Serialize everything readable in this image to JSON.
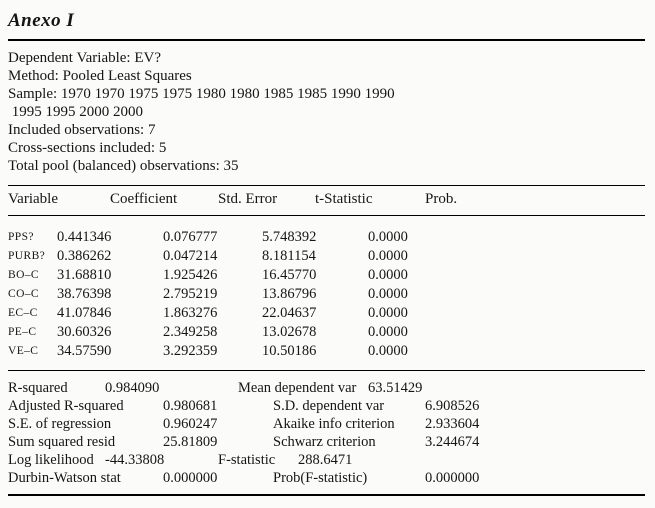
{
  "title": "Anexo I",
  "info": {
    "lines": [
      "Dependent Variable: EV?",
      "Method: Pooled Least Squares",
      "Sample: 1970 1970 1975 1975 1980 1980 1985 1985 1990 1990",
      " 1995 1995 2000 2000",
      "Included observations: 7",
      "Cross-sections included: 5",
      "Total pool (balanced) observations: 35"
    ]
  },
  "table": {
    "columns": [
      "Variable",
      "Coefficient",
      "Std. Error",
      "t-Statistic",
      "Prob."
    ],
    "rows": [
      {
        "variable": "PPS?",
        "coefficient": "0.441346",
        "std_error": "0.076777",
        "t_statistic": "5.748392",
        "prob": "0.0000"
      },
      {
        "variable": "PURB?",
        "coefficient": "0.386262",
        "std_error": "0.047214",
        "t_statistic": "8.181154",
        "prob": "0.0000"
      },
      {
        "variable": "BO–C",
        "coefficient": "31.68810",
        "std_error": "1.925426",
        "t_statistic": "16.45770",
        "prob": "0.0000"
      },
      {
        "variable": "CO–C",
        "coefficient": "38.76398",
        "std_error": "2.795219",
        "t_statistic": "13.86796",
        "prob": "0.0000"
      },
      {
        "variable": "EC–C",
        "coefficient": "41.07846",
        "std_error": "1.863276",
        "t_statistic": "22.04637",
        "prob": "0.0000"
      },
      {
        "variable": "PE–C",
        "coefficient": "30.60326",
        "std_error": "2.349258",
        "t_statistic": "13.02678",
        "prob": "0.0000"
      },
      {
        "variable": "VE–C",
        "coefficient": "34.57590",
        "std_error": "3.292359",
        "t_statistic": "10.50186",
        "prob": "0.0000"
      }
    ]
  },
  "summary": {
    "rows": [
      {
        "left_label": "R-squared",
        "left_value": "0.984090",
        "right_label": "Mean dependent var",
        "right_value": "63.51429"
      },
      {
        "left_label": "Adjusted R-squared",
        "left_value": "0.980681",
        "right_label": "S.D. dependent var",
        "right_value": "6.908526"
      },
      {
        "left_label": "S.E. of regression",
        "left_value": "0.960247",
        "right_label": "Akaike info criterion",
        "right_value": "2.933604"
      },
      {
        "left_label": "Sum squared resid",
        "left_value": "25.81809",
        "right_label": "Schwarz criterion",
        "right_value": "3.244674"
      },
      {
        "left_label": "Log likelihood",
        "left_value": "-44.33808",
        "right_label": "F-statistic",
        "right_value": "288.6471"
      },
      {
        "left_label": "Durbin-Watson stat",
        "left_value": "0.000000",
        "right_label": "Prob(F-statistic)",
        "right_value": "0.000000"
      }
    ]
  }
}
